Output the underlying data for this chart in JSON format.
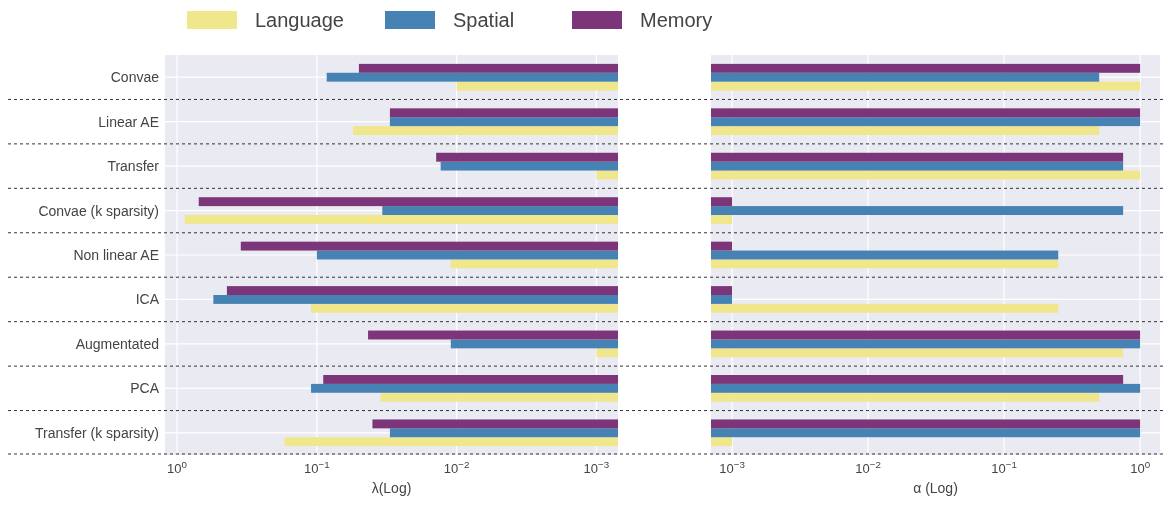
{
  "chart_data": [
    {
      "type": "bar",
      "orientation": "horizontal",
      "log": "x",
      "grid": true,
      "legend": "top",
      "xlabel": "λ(Log)",
      "xlim": [
        1.22,
        0.0007
      ],
      "xticks": [
        {
          "value": 1,
          "label": "10$^{0}$"
        },
        {
          "value": 0.1,
          "label": "10$^{−1}$"
        },
        {
          "value": 0.01,
          "label": "10$^{−2}$"
        },
        {
          "value": 0.001,
          "label": "10$^{−3}$"
        }
      ],
      "categories": [
        "Convae",
        "Linear AE",
        "Transfer",
        "Convae (k sparsity)",
        "Non linear AE",
        "ICA",
        "Augmentated",
        "PCA",
        "Transfer (k sparsity)"
      ],
      "series": [
        {
          "name": "Language",
          "color": "#f0e68c",
          "values": [
            0.01,
            0.055,
            0.001,
            0.88,
            0.011,
            0.11,
            0.001,
            0.035,
            0.17
          ]
        },
        {
          "name": "Spatial",
          "color": "#4682b4",
          "values": [
            0.085,
            0.03,
            0.013,
            0.034,
            0.1,
            0.55,
            0.011,
            0.11,
            0.03
          ]
        },
        {
          "name": "Memory",
          "color": "#7b3578",
          "values": [
            0.05,
            0.03,
            0.014,
            0.7,
            0.35,
            0.44,
            0.043,
            0.09,
            0.04
          ]
        }
      ]
    },
    {
      "type": "bar",
      "orientation": "horizontal",
      "log": "x",
      "grid": true,
      "tick_labels": "x",
      "xlabel": "α (Log)",
      "xlim": [
        0.0007,
        1.4
      ],
      "xticks": [
        {
          "value": 0.001,
          "label": "10$^{−3}$"
        },
        {
          "value": 0.01,
          "label": "10$^{−2}$"
        },
        {
          "value": 0.1,
          "label": "10$^{−1}$"
        },
        {
          "value": 1,
          "label": "10$^{0}$"
        }
      ],
      "categories": [
        null,
        null,
        null,
        null,
        null,
        null,
        null,
        null,
        null
      ],
      "series": [
        {
          "color": "#f0e68c",
          "values": [
            1,
            0.5,
            1,
            0.001,
            0.25,
            0.25,
            0.75,
            0.5,
            0.001
          ]
        },
        {
          "color": "#4682b4",
          "values": [
            0.5,
            1,
            0.75,
            0.75,
            0.25,
            0.001,
            1,
            1,
            1
          ]
        },
        {
          "color": "#7b3578",
          "values": [
            1,
            1,
            0.75,
            0.001,
            0.001,
            0.001,
            1,
            0.75,
            1
          ]
        }
      ]
    }
  ]
}
